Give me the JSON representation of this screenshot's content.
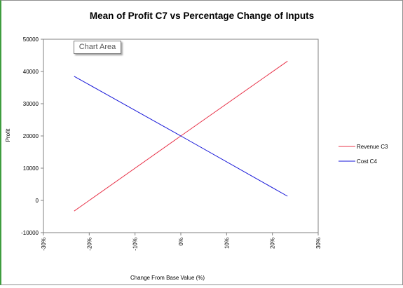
{
  "chart_data": {
    "type": "line",
    "title": "Mean of Profit C7 vs Percentage Change of Inputs",
    "xlabel": "Change From Base Value (%)",
    "ylabel": "Profit",
    "xlim": [
      -30,
      30
    ],
    "ylim": [
      -10000,
      50000
    ],
    "x_ticks": [
      -30,
      -20,
      -10,
      0,
      10,
      20,
      30
    ],
    "x_tick_labels": [
      "-30%",
      "-20%",
      "-10%",
      "0%",
      "10%",
      "20%",
      "30%"
    ],
    "y_ticks": [
      -10000,
      0,
      10000,
      20000,
      30000,
      40000,
      50000
    ],
    "y_tick_labels": [
      "-10000",
      "0",
      "10000",
      "20000",
      "30000",
      "40000",
      "50000"
    ],
    "grid": false,
    "legend_position": "right",
    "series": [
      {
        "name": "Revenue C3",
        "color": "#e8344a",
        "x": [
          -23.3,
          0,
          23.3
        ],
        "y": [
          -3300,
          20000,
          43200
        ]
      },
      {
        "name": "Cost C4",
        "color": "#1414d8",
        "x": [
          -23.3,
          0,
          23.3
        ],
        "y": [
          38500,
          20000,
          1300
        ]
      }
    ]
  },
  "tooltip": {
    "label": "Chart Area"
  }
}
